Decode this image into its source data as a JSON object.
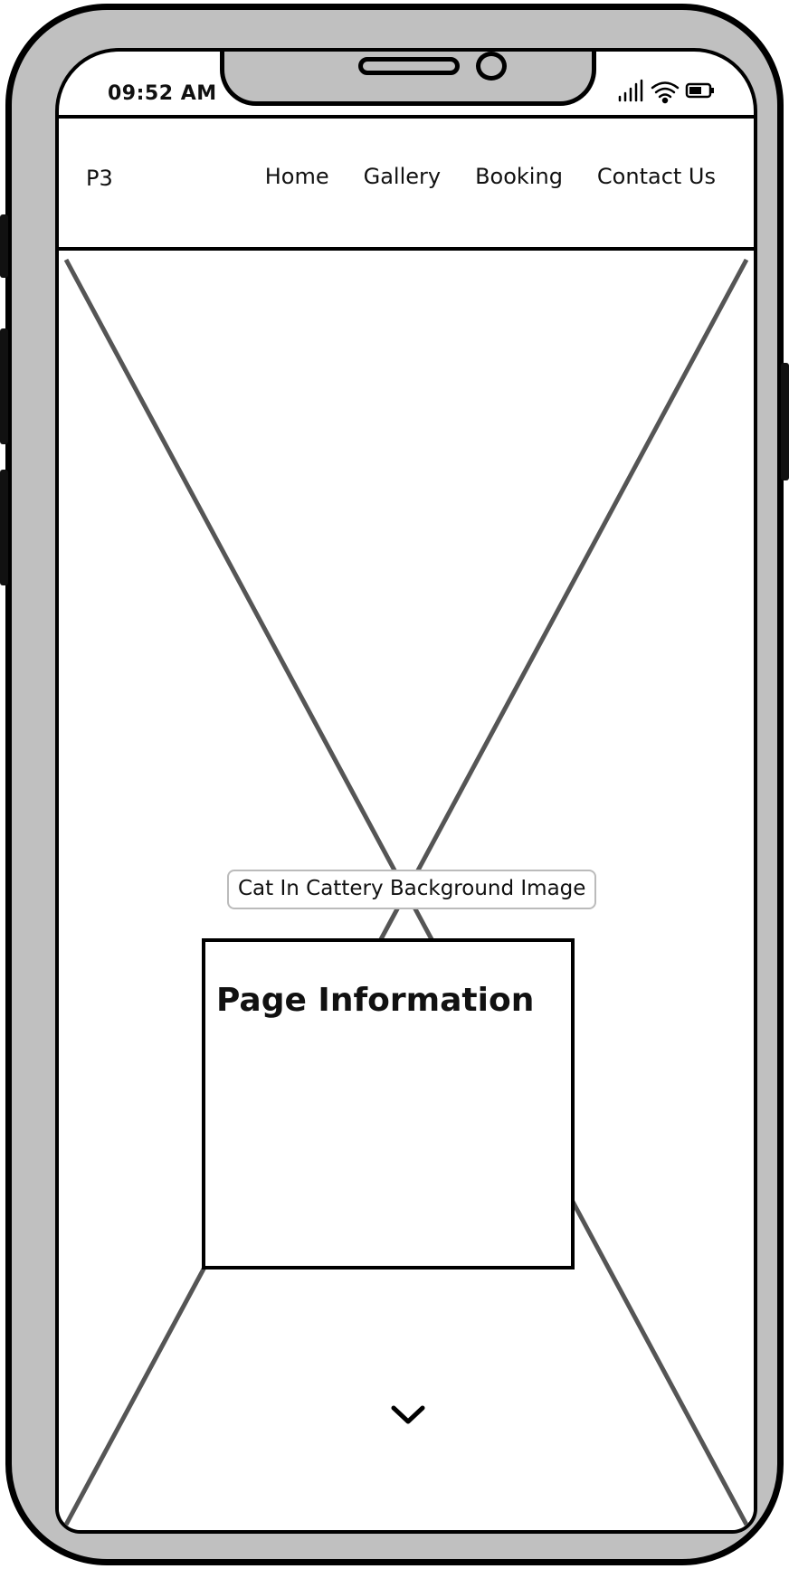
{
  "status_bar": {
    "time": "09:52 AM",
    "icons": [
      "cellular-signal-icon",
      "wifi-icon",
      "battery-icon"
    ]
  },
  "navbar": {
    "brand": "P3",
    "links": [
      "Home",
      "Gallery",
      "Booking",
      "Contact Us"
    ]
  },
  "hero": {
    "image_label": "Cat In Cattery Background Image",
    "card_title": "Page Information",
    "scroll_icon": "chevron-down-icon"
  },
  "colors": {
    "frame": "#c0c0c0",
    "outline": "#000000",
    "placeholder_lines": "#555555",
    "caption_border": "#bbbbbb"
  }
}
